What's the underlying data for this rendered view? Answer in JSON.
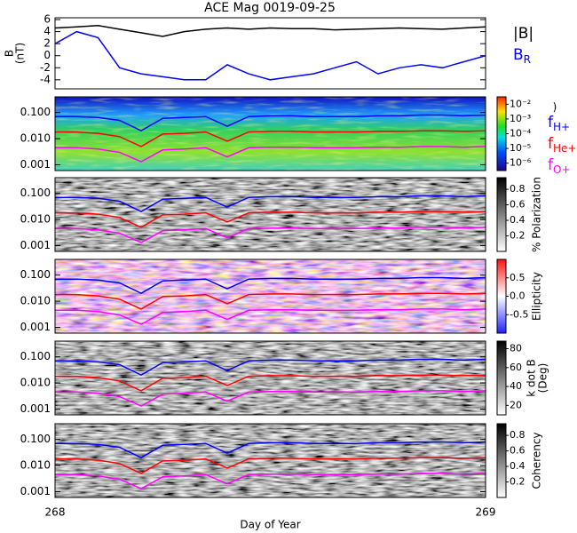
{
  "chart_data": [
    {
      "type": "line",
      "title": "ACE Mag 0019-09-25",
      "ylabel": [
        "B",
        "(nT)"
      ],
      "x": [
        268,
        268.05,
        268.1,
        268.15,
        268.2,
        268.25,
        268.3,
        268.35,
        268.4,
        268.45,
        268.5,
        268.55,
        268.6,
        268.65,
        268.7,
        268.75,
        268.8,
        268.85,
        268.9,
        268.95,
        269
      ],
      "xlim": [
        268,
        269
      ],
      "ylim": [
        -5.5,
        6.3
      ],
      "yticks": [
        -4,
        -2,
        0,
        2,
        4,
        6
      ],
      "series": [
        {
          "name": "|B|",
          "color": "#000000",
          "values": [
            4.6,
            4.8,
            5,
            4.4,
            3.8,
            3.2,
            4.0,
            4.4,
            4.6,
            4.4,
            4.6,
            4.5,
            4.5,
            4.3,
            4.4,
            4.5,
            4.6,
            4.5,
            4.4,
            4.6,
            4.8
          ]
        },
        {
          "name": "B",
          "name_sub": "R",
          "color": "#0000ff",
          "values": [
            2,
            4,
            3,
            -2,
            -3,
            -3.5,
            -4,
            -4,
            -1.5,
            -3,
            -4,
            -3.5,
            -3,
            -2,
            -1,
            -3,
            -2,
            -1.5,
            -2,
            -1,
            0
          ]
        }
      ]
    },
    {
      "type": "spectrogram",
      "colormap": "rainbow",
      "log_y": true,
      "x": [
        268,
        268.05,
        268.1,
        268.15,
        268.2,
        268.25,
        268.3,
        268.35,
        268.4,
        268.45,
        268.5,
        268.55,
        268.6,
        268.65,
        268.7,
        268.75,
        268.8,
        268.85,
        268.9,
        268.95,
        269
      ],
      "xlim": [
        268,
        269
      ],
      "ylim": [
        0.0006,
        0.4
      ],
      "yticks": [
        {
          "value": 0.001,
          "label": "0.001"
        },
        {
          "value": 0.01,
          "label": "0.010"
        },
        {
          "value": 0.1,
          "label": "0.100"
        }
      ],
      "clim": [
        0,
        5
      ],
      "cticks": [
        {
          "value": 0.5,
          "label": "10⁻⁶"
        },
        {
          "value": 1.5,
          "label": "10⁻⁵"
        },
        {
          "value": 2.5,
          "label": "10⁻⁴"
        },
        {
          "value": 3.5,
          "label": "10⁻³"
        },
        {
          "value": 4.5,
          "label": "10⁻²"
        }
      ],
      "clabel": ")",
      "series": [
        {
          "name": "f",
          "name_sub": "H+",
          "color": "#0000ff",
          "values": [
            0.07,
            0.07,
            0.065,
            0.05,
            0.02,
            0.06,
            0.065,
            0.07,
            0.03,
            0.07,
            0.075,
            0.075,
            0.07,
            0.07,
            0.07,
            0.075,
            0.075,
            0.08,
            0.08,
            0.075,
            0.08
          ]
        },
        {
          "name": "f",
          "name_sub": "He+",
          "color": "#ff0000",
          "values": [
            0.018,
            0.018,
            0.016,
            0.012,
            0.005,
            0.015,
            0.016,
            0.018,
            0.008,
            0.018,
            0.019,
            0.019,
            0.018,
            0.018,
            0.018,
            0.019,
            0.019,
            0.02,
            0.02,
            0.019,
            0.02
          ]
        },
        {
          "name": "f",
          "name_sub": "O+",
          "color": "#ff00ff",
          "values": [
            0.0045,
            0.0045,
            0.004,
            0.003,
            0.0013,
            0.0037,
            0.004,
            0.0045,
            0.002,
            0.0045,
            0.0047,
            0.0047,
            0.0045,
            0.0045,
            0.0045,
            0.0047,
            0.0047,
            0.005,
            0.005,
            0.0047,
            0.005
          ]
        }
      ]
    },
    {
      "type": "spectrogram",
      "colormap": "gray",
      "log_y": true,
      "x": [
        268,
        268.05,
        268.1,
        268.15,
        268.2,
        268.25,
        268.3,
        268.35,
        268.4,
        268.45,
        268.5,
        268.55,
        268.6,
        268.65,
        268.7,
        268.75,
        268.8,
        268.85,
        268.9,
        268.95,
        269
      ],
      "xlim": [
        268,
        269
      ],
      "ylim": [
        0.0006,
        0.4
      ],
      "yticks": [
        {
          "value": 0.001,
          "label": "0.001"
        },
        {
          "value": 0.01,
          "label": "0.010"
        },
        {
          "value": 0.1,
          "label": "0.100"
        }
      ],
      "clim": [
        0,
        0.95
      ],
      "cticks": [
        0.2,
        0.4,
        0.6,
        0.8
      ],
      "clabel": "% Polarization",
      "series": [
        {
          "color": "#0000ff",
          "values": [
            0.07,
            0.07,
            0.065,
            0.05,
            0.02,
            0.06,
            0.065,
            0.07,
            0.03,
            0.07,
            0.075,
            0.075,
            0.07,
            0.07,
            0.07,
            0.075,
            0.075,
            0.08,
            0.08,
            0.075,
            0.08
          ]
        },
        {
          "color": "#ff0000",
          "values": [
            0.018,
            0.018,
            0.016,
            0.012,
            0.005,
            0.015,
            0.016,
            0.018,
            0.008,
            0.018,
            0.019,
            0.019,
            0.018,
            0.018,
            0.018,
            0.019,
            0.019,
            0.02,
            0.02,
            0.019,
            0.02
          ]
        },
        {
          "color": "#ff00ff",
          "values": [
            0.0045,
            0.0045,
            0.004,
            0.003,
            0.0013,
            0.0037,
            0.004,
            0.0045,
            0.002,
            0.0045,
            0.0047,
            0.0047,
            0.0045,
            0.0045,
            0.0045,
            0.0047,
            0.0047,
            0.005,
            0.005,
            0.0047,
            0.005
          ]
        }
      ]
    },
    {
      "type": "spectrogram",
      "colormap": "bwr",
      "log_y": true,
      "x": [
        268,
        268.05,
        268.1,
        268.15,
        268.2,
        268.25,
        268.3,
        268.35,
        268.4,
        268.45,
        268.5,
        268.55,
        268.6,
        268.65,
        268.7,
        268.75,
        268.8,
        268.85,
        268.9,
        268.95,
        269
      ],
      "xlim": [
        268,
        269
      ],
      "ylim": [
        0.0006,
        0.4
      ],
      "yticks": [
        {
          "value": 0.001,
          "label": "0.001"
        },
        {
          "value": 0.01,
          "label": "0.010"
        },
        {
          "value": 0.1,
          "label": "0.100"
        }
      ],
      "clim": [
        -1,
        1
      ],
      "cticks": [
        -0.5,
        {
          "value": 0,
          "label": "0.0"
        },
        0.5
      ],
      "clabel": "Ellipticity",
      "series": [
        {
          "color": "#0000ff",
          "values": [
            0.07,
            0.07,
            0.065,
            0.05,
            0.02,
            0.06,
            0.065,
            0.07,
            0.03,
            0.07,
            0.075,
            0.075,
            0.07,
            0.07,
            0.07,
            0.075,
            0.075,
            0.08,
            0.08,
            0.075,
            0.08
          ]
        },
        {
          "color": "#ff0000",
          "values": [
            0.018,
            0.018,
            0.016,
            0.012,
            0.005,
            0.015,
            0.016,
            0.018,
            0.008,
            0.018,
            0.019,
            0.019,
            0.018,
            0.018,
            0.018,
            0.019,
            0.019,
            0.02,
            0.02,
            0.019,
            0.02
          ]
        },
        {
          "color": "#ff00ff",
          "values": [
            0.0045,
            0.0045,
            0.004,
            0.003,
            0.0013,
            0.0037,
            0.004,
            0.0045,
            0.002,
            0.0045,
            0.0047,
            0.0047,
            0.0045,
            0.0045,
            0.0045,
            0.0047,
            0.0047,
            0.005,
            0.005,
            0.0047,
            0.005
          ]
        }
      ]
    },
    {
      "type": "spectrogram",
      "colormap": "gray",
      "log_y": true,
      "x": [
        268,
        268.05,
        268.1,
        268.15,
        268.2,
        268.25,
        268.3,
        268.35,
        268.4,
        268.45,
        268.5,
        268.55,
        268.6,
        268.65,
        268.7,
        268.75,
        268.8,
        268.85,
        268.9,
        268.95,
        269
      ],
      "xlim": [
        268,
        269
      ],
      "ylim": [
        0.0006,
        0.4
      ],
      "yticks": [
        {
          "value": 0.001,
          "label": "0.001"
        },
        {
          "value": 0.01,
          "label": "0.010"
        },
        {
          "value": 0.1,
          "label": "0.100"
        }
      ],
      "clim": [
        10,
        88
      ],
      "cticks": [
        20,
        40,
        60,
        80
      ],
      "clabel": [
        "k dot B",
        "(Deg)"
      ],
      "series": [
        {
          "color": "#0000ff",
          "values": [
            0.07,
            0.07,
            0.065,
            0.05,
            0.02,
            0.06,
            0.065,
            0.07,
            0.03,
            0.07,
            0.075,
            0.075,
            0.07,
            0.07,
            0.07,
            0.075,
            0.075,
            0.08,
            0.08,
            0.075,
            0.08
          ]
        },
        {
          "color": "#ff0000",
          "values": [
            0.018,
            0.018,
            0.016,
            0.012,
            0.005,
            0.015,
            0.016,
            0.018,
            0.008,
            0.018,
            0.019,
            0.019,
            0.018,
            0.018,
            0.018,
            0.019,
            0.019,
            0.02,
            0.02,
            0.019,
            0.02
          ]
        },
        {
          "color": "#ff00ff",
          "values": [
            0.0045,
            0.0045,
            0.004,
            0.003,
            0.0013,
            0.0037,
            0.004,
            0.0045,
            0.002,
            0.0045,
            0.0047,
            0.0047,
            0.0045,
            0.0045,
            0.0045,
            0.0047,
            0.0047,
            0.005,
            0.005,
            0.0047,
            0.005
          ]
        }
      ]
    },
    {
      "type": "spectrogram",
      "colormap": "gray",
      "log_y": true,
      "x": [
        268,
        268.05,
        268.1,
        268.15,
        268.2,
        268.25,
        268.3,
        268.35,
        268.4,
        268.45,
        268.5,
        268.55,
        268.6,
        268.65,
        268.7,
        268.75,
        268.8,
        268.85,
        268.9,
        268.95,
        269
      ],
      "xlim": [
        268,
        269
      ],
      "ylim": [
        0.0006,
        0.4
      ],
      "yticks": [
        {
          "value": 0.001,
          "label": "0.001"
        },
        {
          "value": 0.01,
          "label": "0.010"
        },
        {
          "value": 0.1,
          "label": "0.100"
        }
      ],
      "clim": [
        0,
        0.95
      ],
      "cticks": [
        0.2,
        0.4,
        0.6,
        0.8
      ],
      "clabel": "Coherency",
      "xlabel": "Day of Year",
      "xticks": [
        268,
        269
      ],
      "series": [
        {
          "color": "#0000ff",
          "values": [
            0.07,
            0.07,
            0.065,
            0.05,
            0.02,
            0.06,
            0.065,
            0.07,
            0.03,
            0.07,
            0.075,
            0.075,
            0.07,
            0.07,
            0.07,
            0.075,
            0.075,
            0.08,
            0.08,
            0.075,
            0.08
          ]
        },
        {
          "color": "#ff0000",
          "values": [
            0.018,
            0.018,
            0.016,
            0.012,
            0.005,
            0.015,
            0.016,
            0.018,
            0.008,
            0.018,
            0.019,
            0.019,
            0.018,
            0.018,
            0.018,
            0.019,
            0.019,
            0.02,
            0.02,
            0.019,
            0.02
          ]
        },
        {
          "color": "#ff00ff",
          "values": [
            0.0045,
            0.0045,
            0.004,
            0.003,
            0.0013,
            0.0037,
            0.004,
            0.0045,
            0.002,
            0.0045,
            0.0047,
            0.0047,
            0.0045,
            0.0045,
            0.0045,
            0.0047,
            0.0047,
            0.005,
            0.005,
            0.0047,
            0.005
          ]
        }
      ]
    }
  ]
}
